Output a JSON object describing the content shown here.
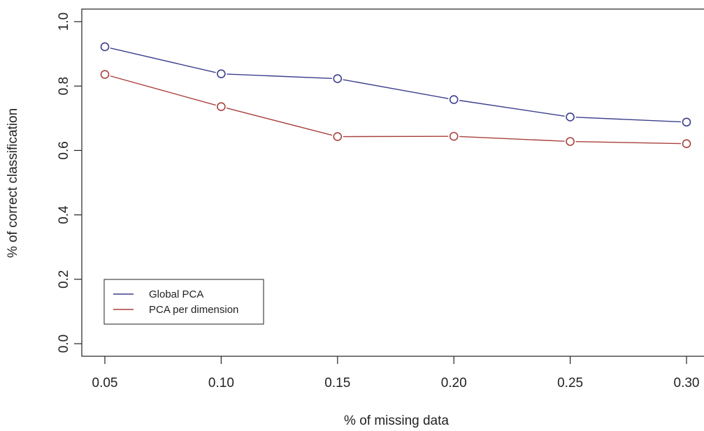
{
  "chart_data": {
    "type": "line",
    "title": "",
    "xlabel": "% of missing data",
    "ylabel": "% of correct classification",
    "x": [
      0.05,
      0.1,
      0.15,
      0.2,
      0.25,
      0.3
    ],
    "x_tick_labels": [
      "0.05",
      "0.10",
      "0.15",
      "0.20",
      "0.25",
      "0.30"
    ],
    "y_tick_values": [
      0.0,
      0.2,
      0.4,
      0.6,
      0.8,
      1.0
    ],
    "y_tick_labels": [
      "0.0",
      "0.2",
      "0.4",
      "0.6",
      "0.8",
      "1.0"
    ],
    "xlim": [
      0.04,
      0.3
    ],
    "ylim": [
      -0.04,
      1.04
    ],
    "grid": false,
    "legend_position": "bottom-left",
    "markers": "open-circle",
    "series": [
      {
        "name": "Global PCA",
        "color": "#3b3f8c",
        "values": [
          0.922,
          0.838,
          0.823,
          0.758,
          0.704,
          0.688
        ]
      },
      {
        "name": "PCA per dimension",
        "color": "#a8413c",
        "values": [
          0.836,
          0.736,
          0.643,
          0.644,
          0.628,
          0.621
        ]
      }
    ]
  }
}
